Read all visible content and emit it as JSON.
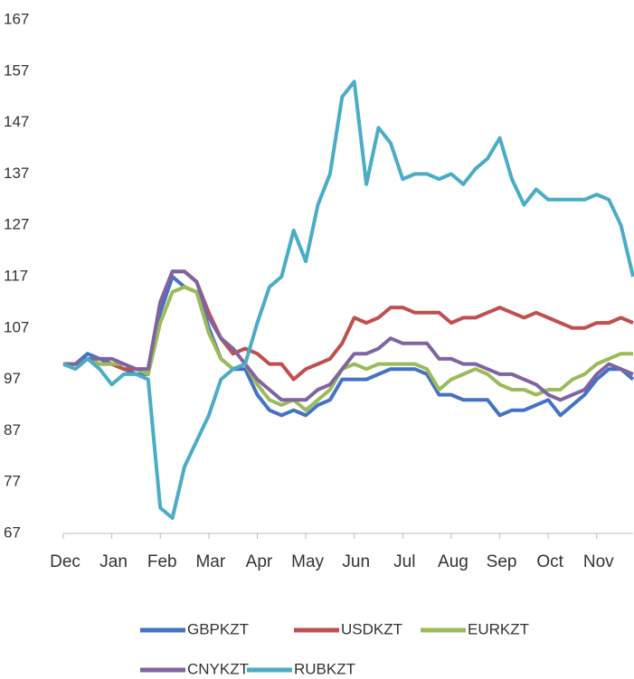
{
  "chart_data": {
    "type": "line",
    "categories": [
      "Dec",
      null,
      null,
      null,
      "Jan",
      null,
      null,
      null,
      "Feb",
      null,
      null,
      null,
      "Mar",
      null,
      null,
      null,
      "Apr",
      null,
      null,
      null,
      "May",
      null,
      null,
      null,
      "Jun",
      null,
      null,
      null,
      "Jul",
      null,
      null,
      null,
      "Aug",
      null,
      null,
      null,
      "Sep",
      null,
      null,
      null,
      "Oct",
      null,
      null,
      null,
      "Nov",
      null,
      null,
      null
    ],
    "series": [
      {
        "name": "GBPKZT",
        "color": "#4472c4",
        "values": [
          100,
          100,
          102,
          101,
          100,
          99,
          98,
          98,
          110,
          117,
          115,
          114,
          107,
          101,
          99,
          99,
          94,
          91,
          90,
          91,
          90,
          92,
          93,
          97,
          97,
          97,
          98,
          99,
          99,
          99,
          98,
          94,
          94,
          93,
          93,
          93,
          90,
          91,
          91,
          92,
          93,
          90,
          92,
          94,
          97,
          99,
          99,
          97
        ]
      },
      {
        "name": "USDKZT",
        "color": "#c0504d",
        "values": [
          100,
          100,
          101,
          100,
          100,
          99,
          99,
          99,
          112,
          118,
          118,
          116,
          110,
          105,
          102,
          103,
          102,
          100,
          100,
          97,
          99,
          100,
          101,
          104,
          109,
          108,
          109,
          111,
          111,
          110,
          110,
          110,
          108,
          109,
          109,
          110,
          111,
          110,
          109,
          110,
          109,
          108,
          107,
          107,
          108,
          108,
          109,
          108
        ]
      },
      {
        "name": "EURKZT",
        "color": "#9bbb59",
        "values": [
          100,
          100,
          101,
          100,
          100,
          100,
          99,
          98,
          108,
          114,
          115,
          114,
          106,
          101,
          99,
          100,
          96,
          93,
          92,
          93,
          91,
          93,
          95,
          99,
          100,
          99,
          100,
          100,
          100,
          100,
          99,
          95,
          97,
          98,
          99,
          98,
          96,
          95,
          95,
          94,
          95,
          95,
          97,
          98,
          100,
          101,
          102,
          102
        ]
      },
      {
        "name": "CNYKZT",
        "color": "#8064a2",
        "values": [
          100,
          100,
          101,
          101,
          101,
          100,
          99,
          99,
          112,
          118,
          118,
          116,
          109,
          105,
          103,
          100,
          97,
          95,
          93,
          93,
          93,
          95,
          96,
          99,
          102,
          102,
          103,
          105,
          104,
          104,
          104,
          101,
          101,
          100,
          100,
          99,
          98,
          98,
          97,
          96,
          94,
          93,
          94,
          95,
          98,
          100,
          99,
          98
        ]
      },
      {
        "name": "RUBKZT",
        "color": "#4bacc6",
        "values": [
          100,
          99,
          101,
          99,
          96,
          98,
          98,
          97,
          72,
          70,
          80,
          85,
          90,
          97,
          99,
          100,
          108,
          115,
          117,
          126,
          120,
          131,
          137,
          152,
          155,
          135,
          146,
          143,
          136,
          137,
          137,
          136,
          137,
          135,
          138,
          140,
          144,
          136,
          131,
          134,
          132,
          132,
          132,
          132,
          133,
          132,
          127,
          117
        ]
      }
    ],
    "ylim": [
      67,
      167
    ],
    "yticks": [
      67,
      77,
      87,
      97,
      107,
      117,
      127,
      137,
      147,
      157,
      167
    ]
  }
}
